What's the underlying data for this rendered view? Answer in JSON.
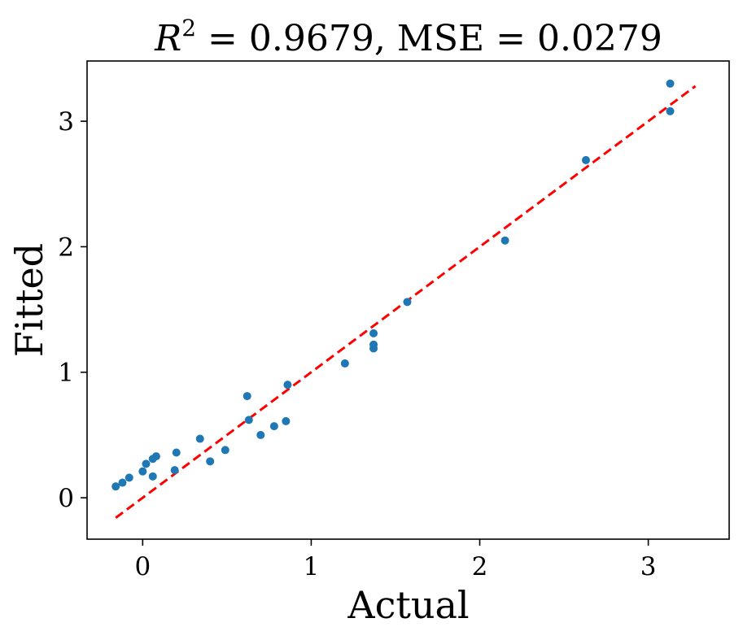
{
  "chart_data": {
    "type": "scatter",
    "title_prefix": "R",
    "title_sup": "2",
    "title_rest": " = 0.9679, MSE = 0.0279",
    "xlabel": "Actual",
    "ylabel": "Fitted",
    "xlim": [
      -0.33,
      3.48
    ],
    "ylim": [
      -0.33,
      3.48
    ],
    "xticks": [
      0,
      1,
      2,
      3
    ],
    "yticks": [
      0,
      1,
      2,
      3
    ],
    "xtick_labels": [
      "0",
      "1",
      "2",
      "3"
    ],
    "ytick_labels": [
      "0",
      "1",
      "2",
      "3"
    ],
    "grid": false,
    "legend": "none",
    "series": [
      {
        "name": "points",
        "color": "#1f77b4",
        "points": [
          [
            -0.16,
            0.09
          ],
          [
            -0.12,
            0.12
          ],
          [
            -0.08,
            0.16
          ],
          [
            0.0,
            0.21
          ],
          [
            0.02,
            0.27
          ],
          [
            0.06,
            0.31
          ],
          [
            0.08,
            0.33
          ],
          [
            0.06,
            0.17
          ],
          [
            0.19,
            0.22
          ],
          [
            0.2,
            0.36
          ],
          [
            0.34,
            0.47
          ],
          [
            0.4,
            0.29
          ],
          [
            0.49,
            0.38
          ],
          [
            0.62,
            0.81
          ],
          [
            0.63,
            0.62
          ],
          [
            0.7,
            0.5
          ],
          [
            0.78,
            0.57
          ],
          [
            0.85,
            0.61
          ],
          [
            0.86,
            0.9
          ],
          [
            1.2,
            1.07
          ],
          [
            1.37,
            1.19
          ],
          [
            1.37,
            1.22
          ],
          [
            1.37,
            1.31
          ],
          [
            1.57,
            1.56
          ],
          [
            2.15,
            2.05
          ],
          [
            2.63,
            2.69
          ],
          [
            3.13,
            3.08
          ],
          [
            3.13,
            3.3
          ]
        ]
      }
    ],
    "reference_line": {
      "name": "identity",
      "color": "#ff0000",
      "style": "dashed",
      "from": [
        -0.16,
        -0.16
      ],
      "to": [
        3.28,
        3.28
      ]
    }
  }
}
